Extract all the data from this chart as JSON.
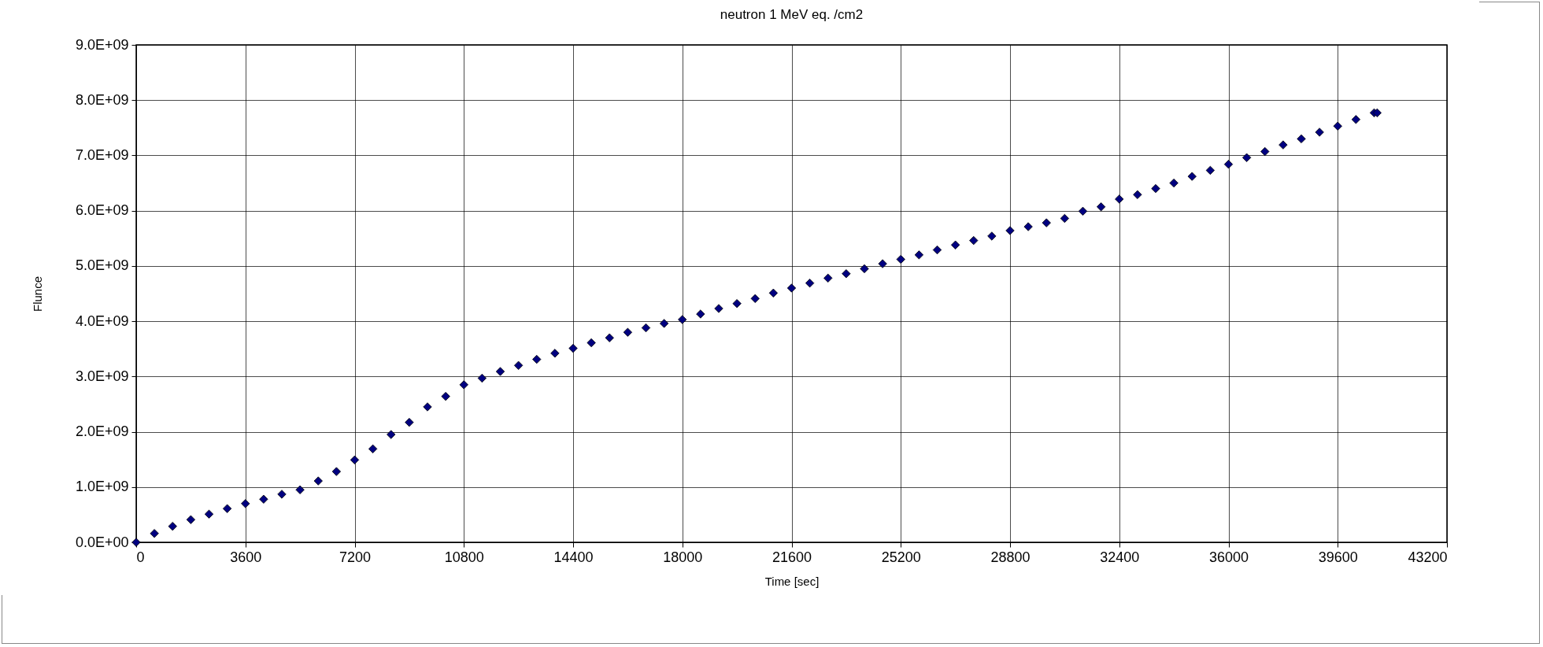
{
  "chart_data": {
    "type": "scatter",
    "title": "neutron 1 MeV eq. /cm2",
    "xlabel": "Time [sec]",
    "ylabel": "Flunce",
    "x": [
      0,
      600,
      1200,
      1800,
      2400,
      3000,
      3600,
      4200,
      4800,
      5400,
      6000,
      6600,
      7200,
      7800,
      8400,
      9000,
      9600,
      10200,
      10800,
      11400,
      12000,
      12600,
      13200,
      13800,
      14400,
      15000,
      15600,
      16200,
      16800,
      17400,
      18000,
      18600,
      19200,
      19800,
      20400,
      21000,
      21600,
      22200,
      22800,
      23400,
      24000,
      24600,
      25200,
      25800,
      26400,
      27000,
      27600,
      28200,
      28800,
      29400,
      30000,
      30600,
      31200,
      31800,
      32400,
      33000,
      33600,
      34200,
      34800,
      35400,
      36000,
      36600,
      37200,
      37800,
      38400,
      39000,
      39600,
      40200,
      40800,
      40900
    ],
    "series": [
      {
        "color": "#000080",
        "values": [
          0,
          160000000.0,
          290000000.0,
          410000000.0,
          510000000.0,
          610000000.0,
          700000000.0,
          780000000.0,
          870000000.0,
          950000000.0,
          1110000000.0,
          1280000000.0,
          1490000000.0,
          1690000000.0,
          1950000000.0,
          2170000000.0,
          2450000000.0,
          2640000000.0,
          2850000000.0,
          2970000000.0,
          3090000000.0,
          3200000000.0,
          3310000000.0,
          3420000000.0,
          3510000000.0,
          3610000000.0,
          3700000000.0,
          3800000000.0,
          3880000000.0,
          3960000000.0,
          4030000000.0,
          4130000000.0,
          4230000000.0,
          4320000000.0,
          4410000000.0,
          4510000000.0,
          4600000000.0,
          4690000000.0,
          4780000000.0,
          4860000000.0,
          4950000000.0,
          5040000000.0,
          5120000000.0,
          5200000000.0,
          5290000000.0,
          5380000000.0,
          5460000000.0,
          5540000000.0,
          5640000000.0,
          5710000000.0,
          5780000000.0,
          5860000000.0,
          5990000000.0,
          6070000000.0,
          6210000000.0,
          6290000000.0,
          6400000000.0,
          6500000000.0,
          6620000000.0,
          6730000000.0,
          6840000000.0,
          6960000000.0,
          7070000000.0,
          7190000000.0,
          7300000000.0,
          7420000000.0,
          7530000000.0,
          7650000000.0,
          7770000000.0,
          7770000000.0
        ]
      }
    ],
    "xlim": [
      0,
      43200
    ],
    "xticks": [
      0,
      3600,
      7200,
      10800,
      14400,
      18000,
      21600,
      25200,
      28800,
      32400,
      36000,
      39600,
      43200
    ],
    "ylim": [
      0,
      9000000000.0
    ],
    "yticks": [
      {
        "value": 0,
        "label": "0.0E+00"
      },
      {
        "value": 1000000000.0,
        "label": "1.0E+09"
      },
      {
        "value": 2000000000.0,
        "label": "2.0E+09"
      },
      {
        "value": 3000000000.0,
        "label": "3.0E+09"
      },
      {
        "value": 4000000000.0,
        "label": "4.0E+09"
      },
      {
        "value": 5000000000.0,
        "label": "5.0E+09"
      },
      {
        "value": 6000000000.0,
        "label": "6.0E+09"
      },
      {
        "value": 7000000000.0,
        "label": "7.0E+09"
      },
      {
        "value": 8000000000.0,
        "label": "8.0E+09"
      },
      {
        "value": 9000000000.0,
        "label": "9.0E+09"
      }
    ],
    "grid": true,
    "legend": false,
    "marker": "diamond"
  }
}
